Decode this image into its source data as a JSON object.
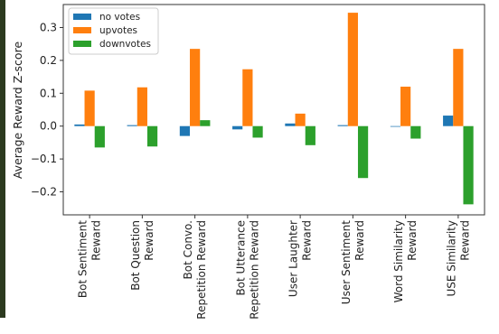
{
  "chart_data": {
    "type": "bar",
    "ylabel": "Average Reward Z-score",
    "xlabel": "",
    "title": "",
    "ylim": [
      -0.27,
      0.37
    ],
    "yticks": [
      -0.2,
      -0.1,
      0.0,
      0.1,
      0.2,
      0.3
    ],
    "ytick_labels": [
      "−0.2",
      "−0.1",
      "0.0",
      "0.1",
      "0.2",
      "0.3"
    ],
    "grid": false,
    "legend_position": "top-left",
    "categories": [
      [
        "Bot Sentiment",
        "Reward"
      ],
      [
        "Bot Question",
        "Reward"
      ],
      [
        "Bot Convo.",
        "Repetition Reward"
      ],
      [
        "Bot Utterance",
        "Repetition Reward"
      ],
      [
        "User Laughter",
        "Reward"
      ],
      [
        "User Sentiment",
        "Reward"
      ],
      [
        "Word Similarity",
        "Reward"
      ],
      [
        "USE Similarity",
        "Reward"
      ]
    ],
    "series": [
      {
        "name": "no votes",
        "color": "#1f77b4",
        "values": [
          0.005,
          0.003,
          -0.03,
          -0.01,
          0.008,
          0.003,
          -0.002,
          0.032
        ]
      },
      {
        "name": "upvotes",
        "color": "#ff7f0e",
        "values": [
          0.108,
          0.118,
          0.235,
          0.173,
          0.038,
          0.345,
          0.12,
          0.235
        ]
      },
      {
        "name": "downvotes",
        "color": "#2ca02c",
        "values": [
          -0.065,
          -0.062,
          0.018,
          -0.035,
          -0.058,
          -0.158,
          -0.038,
          -0.238
        ]
      }
    ]
  }
}
